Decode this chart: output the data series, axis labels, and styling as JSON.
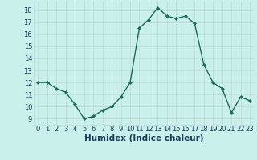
{
  "x": [
    0,
    1,
    2,
    3,
    4,
    5,
    6,
    7,
    8,
    9,
    10,
    11,
    12,
    13,
    14,
    15,
    16,
    17,
    18,
    19,
    20,
    21,
    22,
    23
  ],
  "y": [
    12,
    12,
    11.5,
    11.2,
    10.2,
    9.0,
    9.2,
    9.7,
    10.0,
    10.8,
    12.0,
    16.5,
    17.2,
    18.2,
    17.5,
    17.3,
    17.5,
    16.9,
    13.5,
    12.0,
    11.5,
    9.5,
    10.8,
    10.5
  ],
  "xlabel": "Humidex (Indice chaleur)",
  "line_color": "#1a6b5a",
  "bg_color": "#caf0eb",
  "grid_color": "#c0d8d4",
  "tick_label_color": "#1a3a5c",
  "xlabel_color": "#1a3a5c",
  "ylim": [
    8.5,
    18.7
  ],
  "xlim": [
    -0.5,
    23.5
  ],
  "yticks": [
    9,
    10,
    11,
    12,
    13,
    14,
    15,
    16,
    17,
    18
  ],
  "xticks": [
    0,
    1,
    2,
    3,
    4,
    5,
    6,
    7,
    8,
    9,
    10,
    11,
    12,
    13,
    14,
    15,
    16,
    17,
    18,
    19,
    20,
    21,
    22,
    23
  ],
  "marker": "D",
  "marker_size": 2.0,
  "line_width": 1.0,
  "tick_fontsize": 6.0,
  "xlabel_fontsize": 7.5
}
